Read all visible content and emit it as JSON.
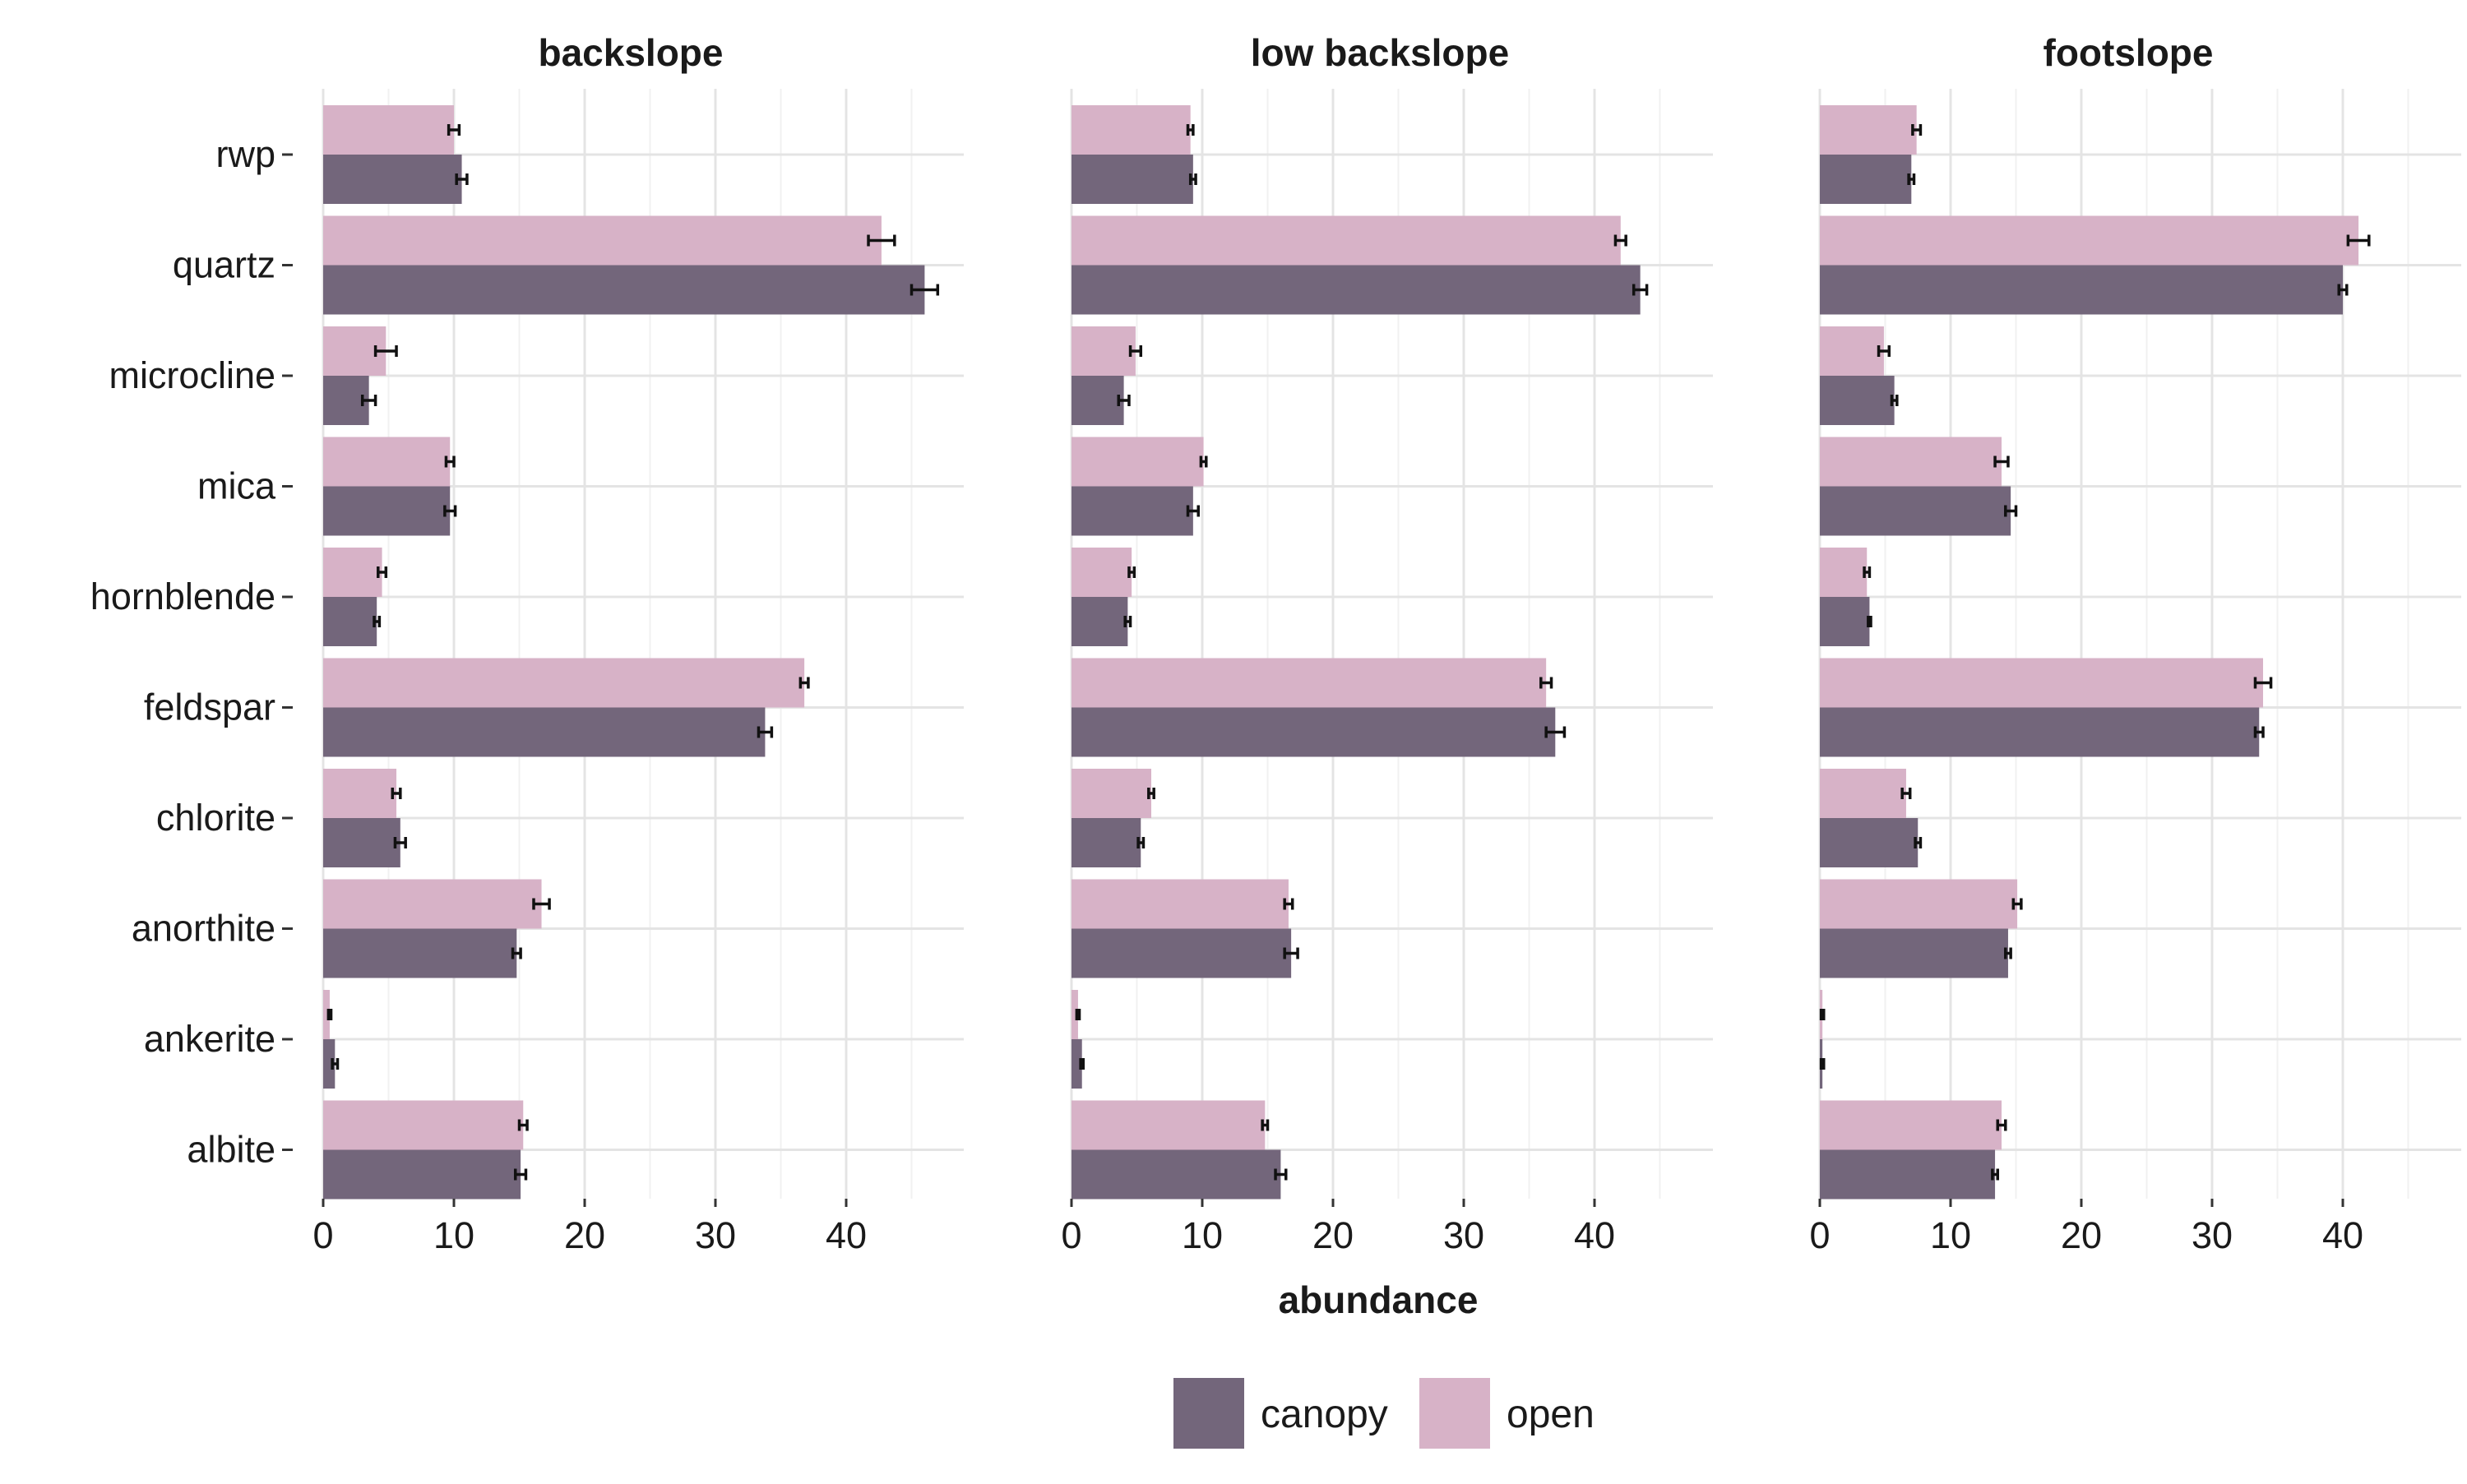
{
  "chart_data": {
    "type": "bar",
    "orientation": "horizontal",
    "xlabel": "abundance",
    "ylabel": "",
    "xlim": [
      0,
      49
    ],
    "xticks": [
      0,
      10,
      20,
      30,
      40
    ],
    "grid": true,
    "legend_position": "bottom",
    "colors": {
      "canopy": "#73667B",
      "open": "#D7B2C7"
    },
    "categories": [
      "rwp",
      "quartz",
      "microcline",
      "mica",
      "hornblende",
      "feldspar",
      "chlorite",
      "anorthite",
      "ankerite",
      "albite"
    ],
    "legend": [
      {
        "key": "canopy",
        "label": "canopy"
      },
      {
        "key": "open",
        "label": "open"
      }
    ],
    "panels": [
      {
        "title": "backslope",
        "series": [
          {
            "name": "open",
            "values": [
              10.0,
              42.7,
              4.8,
              9.7,
              4.5,
              36.8,
              5.6,
              16.7,
              0.5,
              15.3
            ],
            "errors": [
              0.4,
              1.0,
              0.8,
              0.3,
              0.3,
              0.3,
              0.3,
              0.6,
              0.1,
              0.3
            ]
          },
          {
            "name": "canopy",
            "values": [
              10.6,
              46.0,
              3.5,
              9.7,
              4.1,
              33.8,
              5.9,
              14.8,
              0.9,
              15.1
            ],
            "errors": [
              0.4,
              1.0,
              0.5,
              0.4,
              0.2,
              0.5,
              0.4,
              0.3,
              0.2,
              0.4
            ]
          }
        ]
      },
      {
        "title": "low backslope",
        "series": [
          {
            "name": "open",
            "values": [
              9.1,
              42.0,
              4.9,
              10.1,
              4.6,
              36.3,
              6.1,
              16.6,
              0.5,
              14.8
            ],
            "errors": [
              0.2,
              0.4,
              0.4,
              0.2,
              0.2,
              0.4,
              0.2,
              0.3,
              0.1,
              0.2
            ]
          },
          {
            "name": "canopy",
            "values": [
              9.3,
              43.5,
              4.0,
              9.3,
              4.3,
              37.0,
              5.3,
              16.8,
              0.8,
              16.0
            ],
            "errors": [
              0.2,
              0.5,
              0.4,
              0.4,
              0.2,
              0.7,
              0.2,
              0.5,
              0.1,
              0.4
            ]
          }
        ]
      },
      {
        "title": "footslope",
        "series": [
          {
            "name": "open",
            "values": [
              7.4,
              41.2,
              4.9,
              13.9,
              3.6,
              33.9,
              6.6,
              15.1,
              0.2,
              13.9
            ],
            "errors": [
              0.3,
              0.8,
              0.4,
              0.5,
              0.2,
              0.6,
              0.3,
              0.3,
              0.1,
              0.3
            ]
          },
          {
            "name": "canopy",
            "values": [
              7.0,
              40.0,
              5.7,
              14.6,
              3.8,
              33.6,
              7.5,
              14.4,
              0.2,
              13.4
            ],
            "errors": [
              0.2,
              0.3,
              0.2,
              0.4,
              0.1,
              0.3,
              0.2,
              0.2,
              0.1,
              0.2
            ]
          }
        ]
      }
    ]
  }
}
